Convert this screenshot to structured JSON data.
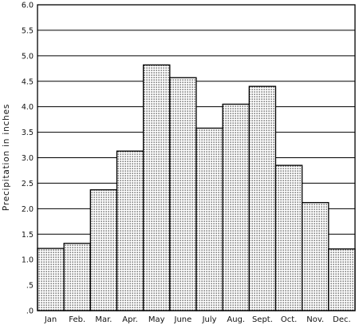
{
  "chart_data": {
    "type": "bar",
    "title": "",
    "xlabel": "",
    "ylabel": "Precipitation in inches",
    "categories": [
      "Jan",
      "Feb.",
      "Mar.",
      "Apr.",
      "May",
      "June",
      "July",
      "Aug.",
      "Sept.",
      "Oct.",
      "Nov.",
      "Dec."
    ],
    "values": [
      1.22,
      1.32,
      2.37,
      3.13,
      4.82,
      4.57,
      3.58,
      4.05,
      4.4,
      2.85,
      2.12,
      1.21
    ],
    "ylim": [
      0,
      6.0
    ],
    "yticks": [
      0,
      0.5,
      1.0,
      1.5,
      2.0,
      2.5,
      3.0,
      3.5,
      4.0,
      4.5,
      5.0,
      5.5,
      6.0
    ],
    "ytick_labels": [
      ".0",
      ".5",
      "1.0",
      "1.5",
      "2.0",
      "2.5",
      "3.0",
      "3.5",
      "4.0",
      "4.5",
      "5.0",
      "5.5",
      "6.0"
    ],
    "grid": "horizontal",
    "bar_fill": "stippled",
    "colors": {
      "bar_dot": "#2a2a2a",
      "bar_edge": "#000000",
      "grid": "#000000"
    }
  }
}
